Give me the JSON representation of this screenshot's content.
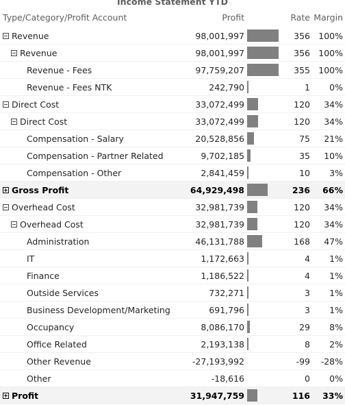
{
  "title": "Income Statement YTD",
  "columns": {
    "account": "Type/Category/Profit Account",
    "profit": "Profit",
    "rate": "Rate",
    "margin": "Margin"
  },
  "colors": {
    "bar": "#808080",
    "total_row": "#f3f3f3"
  },
  "bar_max": 98001997,
  "rows": [
    {
      "name": "Revenue",
      "level": 0,
      "expander": "minus",
      "profit": "98,001,997",
      "profit_value": 98001997,
      "rate": "356",
      "margin": "100%",
      "total": false
    },
    {
      "name": "Revenue",
      "level": 1,
      "expander": "minus",
      "profit": "98,001,997",
      "profit_value": 98001997,
      "rate": "356",
      "margin": "100%",
      "total": false
    },
    {
      "name": "Revenue - Fees",
      "level": 2,
      "expander": "",
      "profit": "97,759,207",
      "profit_value": 97759207,
      "rate": "355",
      "margin": "100%",
      "total": false
    },
    {
      "name": "Revenue - Fees NTK",
      "level": 2,
      "expander": "",
      "profit": "242,790",
      "profit_value": 242790,
      "rate": "1",
      "margin": "0%",
      "total": false
    },
    {
      "name": "Direct Cost",
      "level": 0,
      "expander": "minus",
      "profit": "33,072,499",
      "profit_value": 33072499,
      "rate": "120",
      "margin": "34%",
      "total": false
    },
    {
      "name": "Direct Cost",
      "level": 1,
      "expander": "minus",
      "profit": "33,072,499",
      "profit_value": 33072499,
      "rate": "120",
      "margin": "34%",
      "total": false
    },
    {
      "name": "Compensation - Salary",
      "level": 2,
      "expander": "",
      "profit": "20,528,856",
      "profit_value": 20528856,
      "rate": "75",
      "margin": "21%",
      "total": false
    },
    {
      "name": "Compensation - Partner Related",
      "level": 2,
      "expander": "",
      "profit": "9,702,185",
      "profit_value": 9702185,
      "rate": "35",
      "margin": "10%",
      "total": false
    },
    {
      "name": "Compensation - Other",
      "level": 2,
      "expander": "",
      "profit": "2,841,459",
      "profit_value": 2841459,
      "rate": "10",
      "margin": "3%",
      "total": false
    },
    {
      "name": "Gross Profit",
      "level": 0,
      "expander": "plus",
      "profit": "64,929,498",
      "profit_value": 64929498,
      "rate": "236",
      "margin": "66%",
      "total": true
    },
    {
      "name": "Overhead Cost",
      "level": 0,
      "expander": "minus",
      "profit": "32,981,739",
      "profit_value": 32981739,
      "rate": "120",
      "margin": "34%",
      "total": false
    },
    {
      "name": "Overhead Cost",
      "level": 1,
      "expander": "minus",
      "profit": "32,981,739",
      "profit_value": 32981739,
      "rate": "120",
      "margin": "34%",
      "total": false
    },
    {
      "name": "Administration",
      "level": 2,
      "expander": "",
      "profit": "46,131,788",
      "profit_value": 46131788,
      "rate": "168",
      "margin": "47%",
      "total": false
    },
    {
      "name": "IT",
      "level": 2,
      "expander": "",
      "profit": "1,172,663",
      "profit_value": 1172663,
      "rate": "4",
      "margin": "1%",
      "total": false
    },
    {
      "name": "Finance",
      "level": 2,
      "expander": "",
      "profit": "1,186,522",
      "profit_value": 1186522,
      "rate": "4",
      "margin": "1%",
      "total": false
    },
    {
      "name": "Outside Services",
      "level": 2,
      "expander": "",
      "profit": "732,271",
      "profit_value": 732271,
      "rate": "3",
      "margin": "1%",
      "total": false
    },
    {
      "name": "Business Development/Marketing",
      "level": 2,
      "expander": "",
      "profit": "691,796",
      "profit_value": 691796,
      "rate": "3",
      "margin": "1%",
      "total": false
    },
    {
      "name": "Occupancy",
      "level": 2,
      "expander": "",
      "profit": "8,086,170",
      "profit_value": 8086170,
      "rate": "29",
      "margin": "8%",
      "total": false
    },
    {
      "name": "Office Related",
      "level": 2,
      "expander": "",
      "profit": "2,193,138",
      "profit_value": 2193138,
      "rate": "8",
      "margin": "2%",
      "total": false
    },
    {
      "name": "Other Revenue",
      "level": 2,
      "expander": "",
      "profit": "-27,193,992",
      "profit_value": -27193992,
      "rate": "-99",
      "margin": "-28%",
      "total": false
    },
    {
      "name": "Other",
      "level": 2,
      "expander": "",
      "profit": "-18,616",
      "profit_value": -18616,
      "rate": "0",
      "margin": "0%",
      "total": false
    },
    {
      "name": "Profit",
      "level": 0,
      "expander": "plus",
      "profit": "31,947,759",
      "profit_value": 31947759,
      "rate": "116",
      "margin": "33%",
      "total": true
    }
  ]
}
